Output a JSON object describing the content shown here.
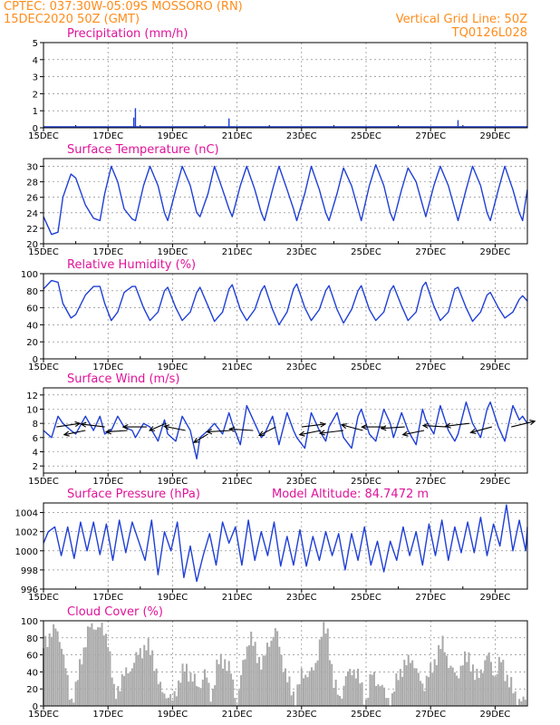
{
  "header": {
    "line1": "CPTEC:  037:30W-05:09S  MOSSORO (RN)",
    "line2": "15DEC2020 50Z (GMT)",
    "grid_note": "Vertical Grid Line: 50Z",
    "code": "TQ0126L028"
  },
  "colors": {
    "header": "#ff8c1a",
    "title": "#e0139a",
    "line": "#1f3fd6",
    "bar": "#a9a9a9",
    "arrow": "#000000"
  },
  "chart_data": [
    {
      "type": "bar",
      "title": "Precipitation (mm/h)",
      "ylim": [
        0,
        5
      ],
      "yticks": [
        0,
        1,
        2,
        3,
        4,
        5
      ],
      "xticks": [
        "15DEC",
        "17DEC",
        "19DEC",
        "21DEC",
        "23DEC",
        "25DEC",
        "27DEC",
        "29DEC"
      ],
      "x_day_range": [
        15,
        30
      ],
      "grid": true,
      "bars": [
        {
          "day": 17.85,
          "value": 1.15
        },
        {
          "day": 17.8,
          "value": 0.6
        },
        {
          "day": 20.75,
          "value": 0.55
        },
        {
          "day": 27.85,
          "value": 0.45
        }
      ]
    },
    {
      "type": "line",
      "title": "Surface Temperature (nC)",
      "ylim": [
        20,
        31
      ],
      "yticks": [
        20,
        22,
        24,
        26,
        28,
        30
      ],
      "xticks": [
        "15DEC",
        "17DEC",
        "19DEC",
        "21DEC",
        "23DEC",
        "25DEC",
        "27DEC",
        "29DEC"
      ],
      "x_day_range": [
        15,
        30
      ],
      "grid": true,
      "x": [
        15.0,
        15.25,
        15.45,
        15.6,
        15.85,
        16.0,
        16.3,
        16.55,
        16.75,
        16.9,
        17.1,
        17.3,
        17.5,
        17.75,
        17.85,
        18.1,
        18.3,
        18.55,
        18.75,
        18.85,
        19.1,
        19.3,
        19.55,
        19.75,
        19.85,
        20.1,
        20.3,
        20.55,
        20.75,
        20.85,
        21.1,
        21.3,
        21.55,
        21.75,
        21.85,
        22.1,
        22.3,
        22.55,
        22.75,
        22.85,
        23.1,
        23.3,
        23.55,
        23.75,
        23.85,
        24.1,
        24.3,
        24.55,
        24.75,
        24.85,
        25.1,
        25.3,
        25.55,
        25.75,
        25.85,
        26.1,
        26.3,
        26.55,
        26.75,
        26.85,
        27.1,
        27.3,
        27.55,
        27.75,
        27.85,
        28.1,
        28.3,
        28.55,
        28.75,
        28.85,
        29.1,
        29.3,
        29.55,
        29.75,
        29.85,
        30.0
      ],
      "y": [
        23.5,
        21.2,
        21.5,
        26.0,
        29.0,
        28.5,
        25.0,
        23.3,
        23.0,
        26.5,
        30.0,
        28.0,
        24.5,
        23.2,
        23.0,
        27.5,
        30.0,
        27.5,
        24.0,
        23.0,
        27.0,
        30.0,
        27.5,
        24.0,
        23.5,
        26.5,
        30.0,
        27.0,
        24.5,
        23.5,
        27.5,
        30.0,
        27.0,
        24.0,
        23.0,
        27.0,
        30.0,
        27.0,
        24.5,
        23.0,
        26.5,
        30.0,
        27.0,
        24.0,
        23.0,
        26.5,
        29.8,
        27.5,
        24.5,
        23.0,
        27.5,
        30.2,
        27.5,
        24.0,
        23.0,
        27.0,
        29.8,
        28.0,
        25.0,
        23.5,
        27.5,
        30.0,
        27.5,
        24.5,
        23.0,
        27.0,
        30.0,
        27.5,
        24.0,
        23.0,
        27.0,
        30.0,
        27.0,
        24.0,
        23.0,
        27.0
      ]
    },
    {
      "type": "line",
      "title": "Relative Humidity (%)",
      "ylim": [
        0,
        100
      ],
      "yticks": [
        0,
        20,
        40,
        60,
        80,
        100
      ],
      "xticks": [
        "15DEC",
        "17DEC",
        "19DEC",
        "21DEC",
        "23DEC",
        "25DEC",
        "27DEC",
        "29DEC"
      ],
      "x_day_range": [
        15,
        30
      ],
      "grid": true,
      "x": [
        15.0,
        15.25,
        15.45,
        15.6,
        15.85,
        16.0,
        16.3,
        16.55,
        16.75,
        16.9,
        17.1,
        17.3,
        17.5,
        17.75,
        17.85,
        18.1,
        18.3,
        18.55,
        18.75,
        18.85,
        19.1,
        19.3,
        19.55,
        19.75,
        19.85,
        20.1,
        20.3,
        20.55,
        20.75,
        20.85,
        21.1,
        21.3,
        21.55,
        21.75,
        21.85,
        22.1,
        22.3,
        22.55,
        22.75,
        22.85,
        23.1,
        23.3,
        23.55,
        23.75,
        23.85,
        24.1,
        24.3,
        24.55,
        24.75,
        24.85,
        25.1,
        25.3,
        25.55,
        25.75,
        25.85,
        26.1,
        26.3,
        26.55,
        26.75,
        26.85,
        27.1,
        27.3,
        27.55,
        27.75,
        27.85,
        28.1,
        28.3,
        28.55,
        28.75,
        28.85,
        29.1,
        29.3,
        29.55,
        29.75,
        29.85,
        30.0
      ],
      "y": [
        82.0,
        92.0,
        90.0,
        65.0,
        48.0,
        52.0,
        75.0,
        85.0,
        85.0,
        65.0,
        45.0,
        55.0,
        78.0,
        85.0,
        85.0,
        60.0,
        45.0,
        55.0,
        80.0,
        84.0,
        60.0,
        45.0,
        55.0,
        78.0,
        84.0,
        62.0,
        44.0,
        55.0,
        82.0,
        87.0,
        58.0,
        45.0,
        58.0,
        80.0,
        86.0,
        58.0,
        40.0,
        55.0,
        82.0,
        88.0,
        60.0,
        45.0,
        58.0,
        80.0,
        86.0,
        58.0,
        42.0,
        58.0,
        80.0,
        86.0,
        58.0,
        45.0,
        55.0,
        80.0,
        86.0,
        62.0,
        45.0,
        55.0,
        85.0,
        90.0,
        62.0,
        45.0,
        55.0,
        82.0,
        84.0,
        60.0,
        44.0,
        55.0,
        75.0,
        78.0,
        60.0,
        48.0,
        55.0,
        70.0,
        74.0,
        68.0
      ]
    },
    {
      "type": "line",
      "title": "Surface Wind (m/s)",
      "ylim": [
        1,
        13
      ],
      "yticks": [
        2,
        4,
        6,
        8,
        10,
        12
      ],
      "xticks": [
        "15DEC",
        "17DEC",
        "19DEC",
        "21DEC",
        "23DEC",
        "25DEC",
        "27DEC",
        "29DEC"
      ],
      "x_day_range": [
        15,
        30
      ],
      "grid": true,
      "x": [
        15.0,
        15.25,
        15.45,
        15.6,
        15.85,
        16.0,
        16.3,
        16.55,
        16.75,
        16.9,
        17.1,
        17.3,
        17.5,
        17.75,
        17.85,
        18.1,
        18.3,
        18.55,
        18.75,
        18.85,
        19.1,
        19.3,
        19.55,
        19.75,
        19.85,
        20.1,
        20.3,
        20.55,
        20.75,
        20.85,
        21.1,
        21.3,
        21.55,
        21.75,
        21.85,
        22.1,
        22.3,
        22.55,
        22.75,
        22.85,
        23.1,
        23.3,
        23.55,
        23.75,
        23.85,
        24.1,
        24.3,
        24.55,
        24.75,
        24.85,
        25.1,
        25.3,
        25.55,
        25.75,
        25.85,
        26.1,
        26.3,
        26.55,
        26.75,
        26.85,
        27.1,
        27.3,
        27.55,
        27.75,
        27.85,
        28.1,
        28.3,
        28.55,
        28.75,
        28.85,
        29.1,
        29.3,
        29.55,
        29.75,
        29.85,
        30.0
      ],
      "y": [
        7.0,
        6.0,
        9.0,
        8.0,
        7.0,
        6.5,
        9.0,
        7.0,
        9.0,
        6.5,
        7.0,
        9.0,
        7.5,
        7.0,
        6.0,
        8.0,
        7.5,
        5.5,
        8.5,
        6.5,
        5.5,
        9.0,
        7.0,
        3.0,
        6.0,
        7.0,
        8.0,
        6.5,
        9.5,
        8.0,
        5.0,
        10.5,
        8.0,
        6.0,
        6.5,
        9.0,
        5.0,
        9.5,
        7.0,
        6.0,
        4.5,
        9.5,
        7.0,
        5.5,
        7.5,
        9.5,
        6.0,
        4.5,
        9.0,
        10.0,
        6.5,
        5.5,
        10.0,
        8.0,
        6.0,
        9.5,
        7.0,
        5.0,
        10.0,
        8.5,
        6.5,
        10.5,
        7.0,
        5.5,
        6.5,
        11.0,
        8.0,
        6.0,
        10.0,
        11.0,
        7.5,
        5.5,
        10.5,
        8.5,
        9.0,
        8.0
      ],
      "vectors": [
        {
          "day": 15.4,
          "speed": 7.5,
          "dx": 1.0,
          "dy": -0.25
        },
        {
          "day": 16.3,
          "speed": 7.0,
          "dx": -0.9,
          "dy": 0.3
        },
        {
          "day": 16.9,
          "speed": 7.5,
          "dx": -1.0,
          "dy": -0.2
        },
        {
          "day": 17.6,
          "speed": 7.0,
          "dx": -0.9,
          "dy": 0.1
        },
        {
          "day": 18.2,
          "speed": 7.5,
          "dx": -1.0,
          "dy": 0.0
        },
        {
          "day": 18.8,
          "speed": 8.0,
          "dx": -0.7,
          "dy": 0.5
        },
        {
          "day": 19.4,
          "speed": 7.0,
          "dx": -0.9,
          "dy": -0.3
        },
        {
          "day": 20.1,
          "speed": 6.5,
          "dx": -0.6,
          "dy": 0.6
        },
        {
          "day": 20.8,
          "speed": 7.0,
          "dx": -1.0,
          "dy": 0.1
        },
        {
          "day": 21.5,
          "speed": 7.0,
          "dx": -1.0,
          "dy": -0.1
        },
        {
          "day": 22.2,
          "speed": 7.5,
          "dx": -0.7,
          "dy": 0.6
        },
        {
          "day": 23.0,
          "speed": 7.5,
          "dx": 1.0,
          "dy": -0.2
        },
        {
          "day": 23.6,
          "speed": 7.0,
          "dx": -0.9,
          "dy": 0.3
        },
        {
          "day": 24.3,
          "speed": 7.0,
          "dx": -1.0,
          "dy": 0.2
        },
        {
          "day": 24.9,
          "speed": 7.0,
          "dx": -0.9,
          "dy": -0.4
        },
        {
          "day": 25.6,
          "speed": 7.5,
          "dx": -1.0,
          "dy": 0.0
        },
        {
          "day": 26.2,
          "speed": 7.5,
          "dx": -1.0,
          "dy": 0.1
        },
        {
          "day": 26.8,
          "speed": 7.0,
          "dx": -0.9,
          "dy": 0.3
        },
        {
          "day": 27.5,
          "speed": 7.5,
          "dx": -1.0,
          "dy": -0.1
        },
        {
          "day": 28.2,
          "speed": 8.0,
          "dx": -1.0,
          "dy": 0.2
        },
        {
          "day": 28.9,
          "speed": 7.5,
          "dx": -0.9,
          "dy": 0.4
        },
        {
          "day": 29.5,
          "speed": 7.5,
          "dx": 1.0,
          "dy": -0.4
        }
      ]
    },
    {
      "type": "line",
      "title": "Surface Pressure (hPa)",
      "annotation": "Model Altitude: 84.7472 m",
      "ylim": [
        996,
        1005
      ],
      "yticks": [
        996,
        998,
        1000,
        1002,
        1004
      ],
      "xticks": [
        "15DEC",
        "17DEC",
        "19DEC",
        "21DEC",
        "23DEC",
        "25DEC",
        "27DEC",
        "29DEC"
      ],
      "x_day_range": [
        15,
        30
      ],
      "grid": true,
      "x": [
        15.0,
        15.15,
        15.35,
        15.55,
        15.75,
        15.95,
        16.15,
        16.35,
        16.55,
        16.75,
        16.95,
        17.15,
        17.35,
        17.55,
        17.75,
        17.95,
        18.15,
        18.35,
        18.55,
        18.75,
        18.95,
        19.15,
        19.35,
        19.55,
        19.75,
        19.95,
        20.15,
        20.35,
        20.55,
        20.75,
        20.95,
        21.15,
        21.35,
        21.55,
        21.75,
        21.95,
        22.15,
        22.35,
        22.55,
        22.75,
        22.95,
        23.15,
        23.35,
        23.55,
        23.75,
        23.95,
        24.15,
        24.35,
        24.55,
        24.75,
        24.95,
        25.15,
        25.35,
        25.55,
        25.75,
        25.95,
        26.15,
        26.35,
        26.55,
        26.75,
        26.95,
        27.15,
        27.35,
        27.55,
        27.75,
        27.95,
        28.15,
        28.35,
        28.55,
        28.75,
        28.95,
        29.15,
        29.35,
        29.55,
        29.75,
        29.95,
        30.0
      ],
      "y": [
        1000.8,
        1002.0,
        1002.5,
        999.5,
        1002.5,
        999.2,
        1003.0,
        1000.0,
        1003.0,
        999.6,
        1002.8,
        999.0,
        1003.2,
        999.8,
        1003.0,
        1001.0,
        999.0,
        1003.2,
        997.5,
        1002.0,
        1000.0,
        1003.0,
        997.2,
        1000.5,
        996.8,
        999.5,
        1001.8,
        998.5,
        1003.0,
        1000.8,
        1002.5,
        998.5,
        1003.2,
        999.0,
        1002.0,
        999.5,
        1003.0,
        998.4,
        1001.5,
        998.5,
        1002.2,
        998.4,
        1001.5,
        999.0,
        1002.0,
        999.5,
        1001.8,
        998.0,
        1001.8,
        999.0,
        1002.5,
        998.5,
        1001.0,
        997.8,
        1001.0,
        999.0,
        1002.5,
        999.5,
        1002.0,
        998.5,
        1002.8,
        999.5,
        1003.2,
        999.0,
        1002.5,
        999.8,
        1003.0,
        999.8,
        1003.5,
        999.5,
        1002.8,
        1000.5,
        1004.8,
        1000.0,
        1003.2,
        1000.0,
        1002.5
      ]
    },
    {
      "type": "bar",
      "title": "Cloud Cover (%)",
      "ylim": [
        0,
        100
      ],
      "yticks": [
        0,
        20,
        40,
        60,
        80,
        100
      ],
      "xticks": [
        "15DEC",
        "17DEC",
        "19DEC",
        "21DEC",
        "23DEC",
        "25DEC",
        "27DEC",
        "29DEC"
      ],
      "x_day_range": [
        15,
        30
      ],
      "grid": true,
      "profile_x": [
        15.0,
        15.2,
        15.4,
        15.55,
        15.7,
        15.85,
        16.0,
        16.2,
        16.4,
        16.6,
        16.8,
        17.0,
        17.2,
        17.4,
        17.6,
        17.8,
        18.0,
        18.2,
        18.4,
        18.6,
        18.8,
        19.0,
        19.2,
        19.4,
        19.6,
        19.8,
        20.0,
        20.2,
        20.4,
        20.6,
        20.8,
        21.0,
        21.2,
        21.4,
        21.6,
        21.8,
        22.0,
        22.2,
        22.4,
        22.6,
        22.8,
        23.0,
        23.2,
        23.4,
        23.6,
        23.8,
        24.0,
        24.2,
        24.4,
        24.6,
        24.8,
        25.0,
        25.2,
        25.4,
        25.6,
        25.8,
        26.0,
        26.2,
        26.4,
        26.6,
        26.8,
        27.0,
        27.2,
        27.4,
        27.6,
        27.8,
        28.0,
        28.2,
        28.4,
        28.6,
        28.8,
        29.0,
        29.2,
        29.4,
        29.6,
        29.8,
        30.0
      ],
      "profile_y": [
        70,
        85,
        90,
        75,
        40,
        5,
        20,
        60,
        90,
        95,
        90,
        80,
        10,
        30,
        40,
        50,
        65,
        70,
        60,
        20,
        15,
        5,
        30,
        45,
        35,
        20,
        40,
        10,
        50,
        55,
        40,
        5,
        50,
        85,
        60,
        50,
        75,
        90,
        55,
        25,
        10,
        35,
        40,
        40,
        85,
        90,
        25,
        10,
        35,
        45,
        30,
        5,
        40,
        25,
        15,
        5,
        40,
        45,
        60,
        35,
        25,
        40,
        60,
        75,
        45,
        35,
        50,
        60,
        30,
        45,
        60,
        35,
        55,
        30,
        15,
        5,
        5
      ]
    }
  ]
}
